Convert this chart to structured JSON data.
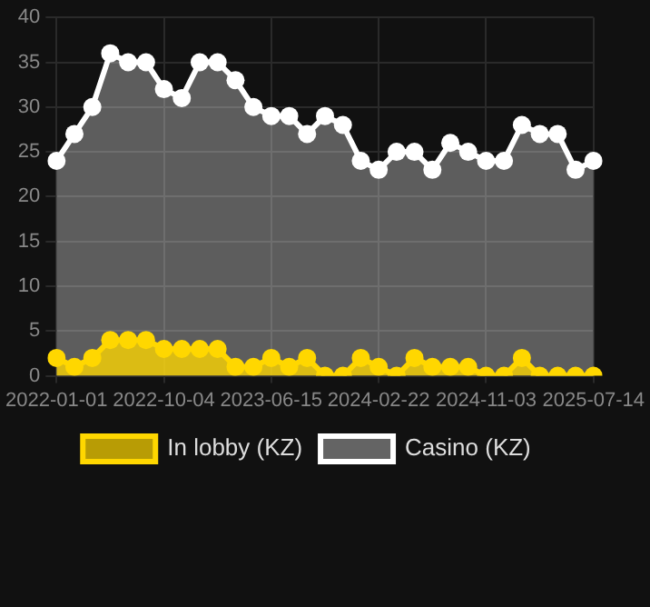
{
  "chart_data": {
    "type": "area",
    "categories": [
      "2022-01-01",
      null,
      null,
      null,
      null,
      null,
      "2022-10-04",
      null,
      null,
      null,
      null,
      null,
      "2023-06-15",
      null,
      null,
      null,
      null,
      null,
      "2024-02-22",
      null,
      null,
      null,
      null,
      null,
      "2024-11-03",
      null,
      null,
      null,
      null,
      null,
      "2025-07-14"
    ],
    "series": [
      {
        "name": "In lobby (KZ)",
        "color": "#ffd700",
        "values": [
          2,
          1,
          2,
          4,
          4,
          4,
          3,
          3,
          3,
          3,
          1,
          1,
          2,
          1,
          2,
          0,
          0,
          2,
          1,
          0,
          2,
          1,
          1,
          1,
          0,
          0,
          2,
          0,
          0,
          0,
          0
        ]
      },
      {
        "name": "Casino (KZ)",
        "color": "#ffffff",
        "values": [
          24,
          27,
          30,
          36,
          35,
          35,
          32,
          31,
          35,
          35,
          33,
          30,
          29,
          29,
          27,
          29,
          28,
          24,
          23,
          25,
          25,
          23,
          26,
          25,
          24,
          24,
          28,
          27,
          27,
          23,
          24
        ]
      }
    ],
    "ylim": [
      0,
      40
    ],
    "yticks": [
      0,
      5,
      10,
      15,
      20,
      25,
      30,
      35,
      40
    ],
    "grid": true,
    "legend": "bottom",
    "marker": "circle"
  }
}
